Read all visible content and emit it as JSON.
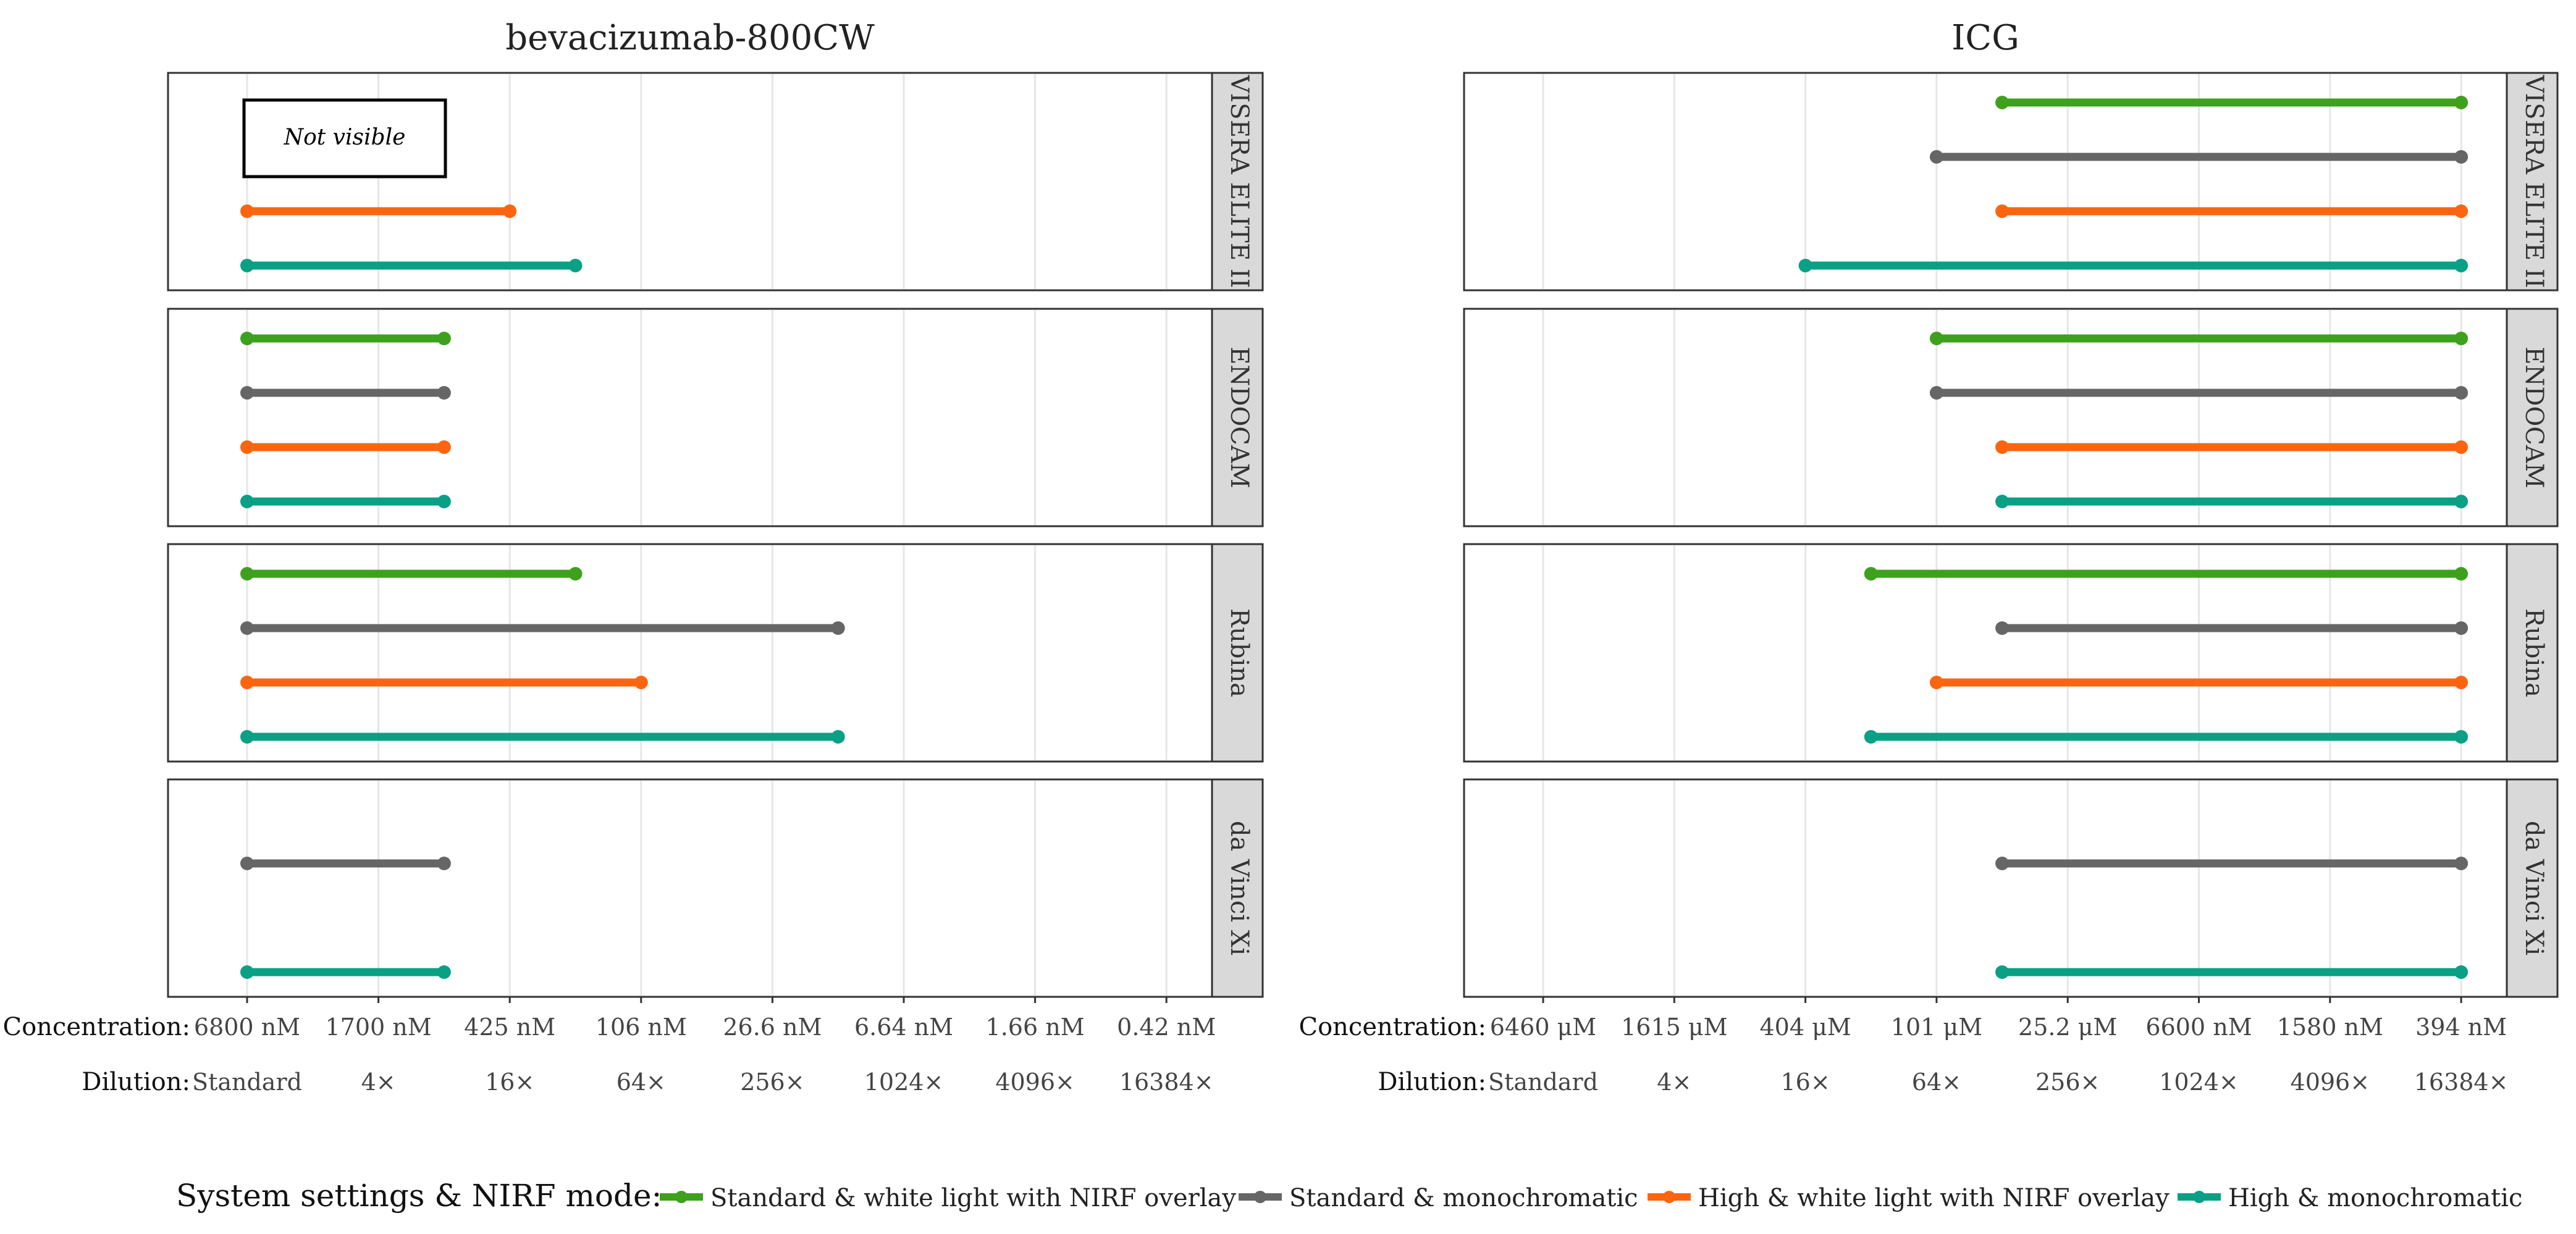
{
  "chart_data": {
    "type": "dumbbell",
    "legend": {
      "title": "System settings & NIRF mode:",
      "position": "bottom",
      "items": [
        {
          "key": "std_wl",
          "label": "Standard & white light with NIRF overlay",
          "color": "#3da11d"
        },
        {
          "key": "std_mono",
          "label": "Standard & monochromatic",
          "color": "#666666"
        },
        {
          "key": "high_wl",
          "label": "High & white light with NIRF overlay",
          "color": "#fc6510"
        },
        {
          "key": "high_mono",
          "label": "High & monochromatic",
          "color": "#0aa085"
        }
      ]
    },
    "row_labels": {
      "concentration": "Concentration:",
      "dilution": "Dilution:"
    },
    "dilution_ticks": [
      "Standard",
      "4×",
      "16×",
      "64×",
      "256×",
      "1024×",
      "4096×",
      "16384×"
    ],
    "facets": [
      "VISERA ELITE II",
      "ENDOCAM",
      "Rubina",
      "da Vinci Xi"
    ],
    "grid": true,
    "panels": [
      {
        "title": "bevacizumab-800CW",
        "concentration_ticks": [
          "6800 nM",
          "1700 nM",
          "425 nM",
          "106 nM",
          "26.6 nM",
          "6.64 nM",
          "1.66 nM",
          "0.42 nM"
        ],
        "segments": {
          "VISERA ELITE II": [
            null,
            null,
            [
              0,
              2
            ],
            [
              0,
              2.5
            ]
          ],
          "ENDOCAM": [
            [
              0,
              1.5
            ],
            [
              0,
              1.5
            ],
            [
              0,
              1.5
            ],
            [
              0,
              1.5
            ]
          ],
          "Rubina": [
            [
              0,
              2.5
            ],
            [
              0,
              4.5
            ],
            [
              0,
              3
            ],
            [
              0,
              4.5
            ]
          ],
          "da Vinci Xi": [
            null,
            [
              0,
              1.5
            ],
            null,
            [
              0,
              1.5
            ]
          ]
        },
        "annotation": {
          "facet": "VISERA ELITE II",
          "text": "Not visible"
        }
      },
      {
        "title": "ICG",
        "concentration_ticks": [
          "6460 μM",
          "1615 μM",
          "404 μM",
          "101 μM",
          "25.2 μM",
          "6600 nM",
          "1580 nM",
          "394 nM"
        ],
        "segments": {
          "VISERA ELITE II": [
            [
              3.5,
              7
            ],
            [
              3,
              7
            ],
            [
              3.5,
              7
            ],
            [
              2,
              7
            ]
          ],
          "ENDOCAM": [
            [
              3,
              7
            ],
            [
              3,
              7
            ],
            [
              3.5,
              7
            ],
            [
              3.5,
              7
            ]
          ],
          "Rubina": [
            [
              2.5,
              7
            ],
            [
              3.5,
              7
            ],
            [
              3,
              7
            ],
            [
              2.5,
              7
            ]
          ],
          "da Vinci Xi": [
            null,
            [
              3.5,
              7
            ],
            null,
            [
              3.5,
              7
            ]
          ]
        }
      }
    ]
  }
}
